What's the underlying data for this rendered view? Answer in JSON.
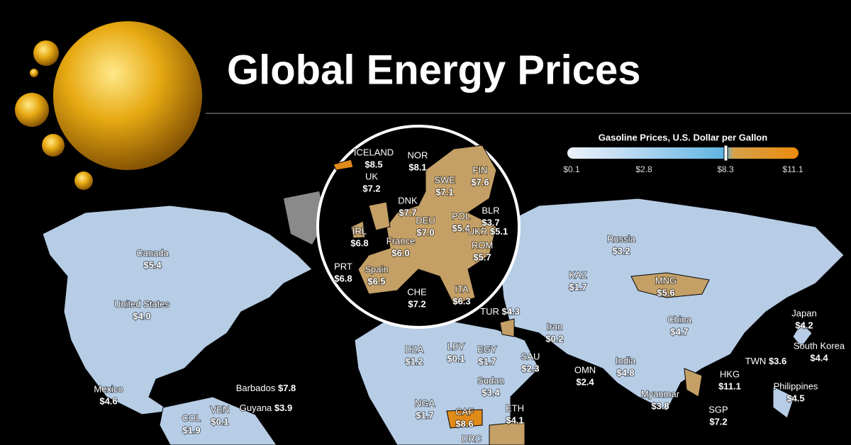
{
  "title": "Global Energy Prices",
  "legend": {
    "title": "Gasoline Prices, U.S. Dollar per Gallon",
    "ticks": [
      "$0.1",
      "$2.8",
      "$8.3",
      "$11.1"
    ]
  },
  "countries": [
    {
      "name": "Canada",
      "price": "$5.4"
    },
    {
      "name": "United States",
      "price": "$4.0"
    },
    {
      "name": "Mexico",
      "price": "$4.6"
    },
    {
      "name": "Barbados",
      "price": "$7.8"
    },
    {
      "name": "Guyana",
      "price": "$3.9"
    },
    {
      "name": "COL",
      "price": "$1.9"
    },
    {
      "name": "VEN",
      "price": "$0.1"
    },
    {
      "name": "Russia",
      "price": "$3.2"
    },
    {
      "name": "KAZ",
      "price": "$1.7"
    },
    {
      "name": "MNG",
      "price": "$5.6"
    },
    {
      "name": "China",
      "price": "$4.7"
    },
    {
      "name": "Japan",
      "price": "$4.2"
    },
    {
      "name": "South Korea",
      "price": "$4.4"
    },
    {
      "name": "TWN",
      "price": "$3.6"
    },
    {
      "name": "Iran",
      "price": "$0.2"
    },
    {
      "name": "TUR",
      "price": "$4.3"
    },
    {
      "name": "India",
      "price": "$4.8"
    },
    {
      "name": "OMN",
      "price": "$2.4"
    },
    {
      "name": "SAU",
      "price": "$2.3"
    },
    {
      "name": "DZA",
      "price": "$1.2"
    },
    {
      "name": "LBY",
      "price": "$0.1"
    },
    {
      "name": "EGY",
      "price": "$1.7"
    },
    {
      "name": "Sudan",
      "price": "$3.4"
    },
    {
      "name": "NGA",
      "price": "$1.7"
    },
    {
      "name": "CAF",
      "price": "$8.6"
    },
    {
      "name": "ETH",
      "price": "$4.1"
    },
    {
      "name": "DRC"
    },
    {
      "name": "HKG",
      "price": "$11.1"
    },
    {
      "name": "Philippines",
      "price": "$4.5"
    },
    {
      "name": "Myanmar",
      "price": "$3.8"
    },
    {
      "name": "SGP",
      "price": "$7.2"
    },
    {
      "name": "ICELAND",
      "price": "$8.5"
    },
    {
      "name": "NOR",
      "price": "$8.1"
    },
    {
      "name": "UK",
      "price": "$7.2"
    },
    {
      "name": "SWE",
      "price": "$7.1"
    },
    {
      "name": "FIN",
      "price": "$7.6"
    },
    {
      "name": "DNK",
      "price": "$7.7"
    },
    {
      "name": "BLR",
      "price": "$3.7"
    },
    {
      "name": "DEU",
      "price": "$7.0"
    },
    {
      "name": "POL",
      "price": "$5.4"
    },
    {
      "name": "IRL",
      "price": "$6.8"
    },
    {
      "name": "UKR",
      "price": "$5.1"
    },
    {
      "name": "France",
      "price": "$6.0"
    },
    {
      "name": "ROM",
      "price": "$5.7"
    },
    {
      "name": "PRT",
      "price": "$6.8"
    },
    {
      "name": "Spain",
      "price": "$6.5"
    },
    {
      "name": "CHE",
      "price": "$7.2"
    },
    {
      "name": "ITA",
      "price": "$6.3"
    }
  ]
}
